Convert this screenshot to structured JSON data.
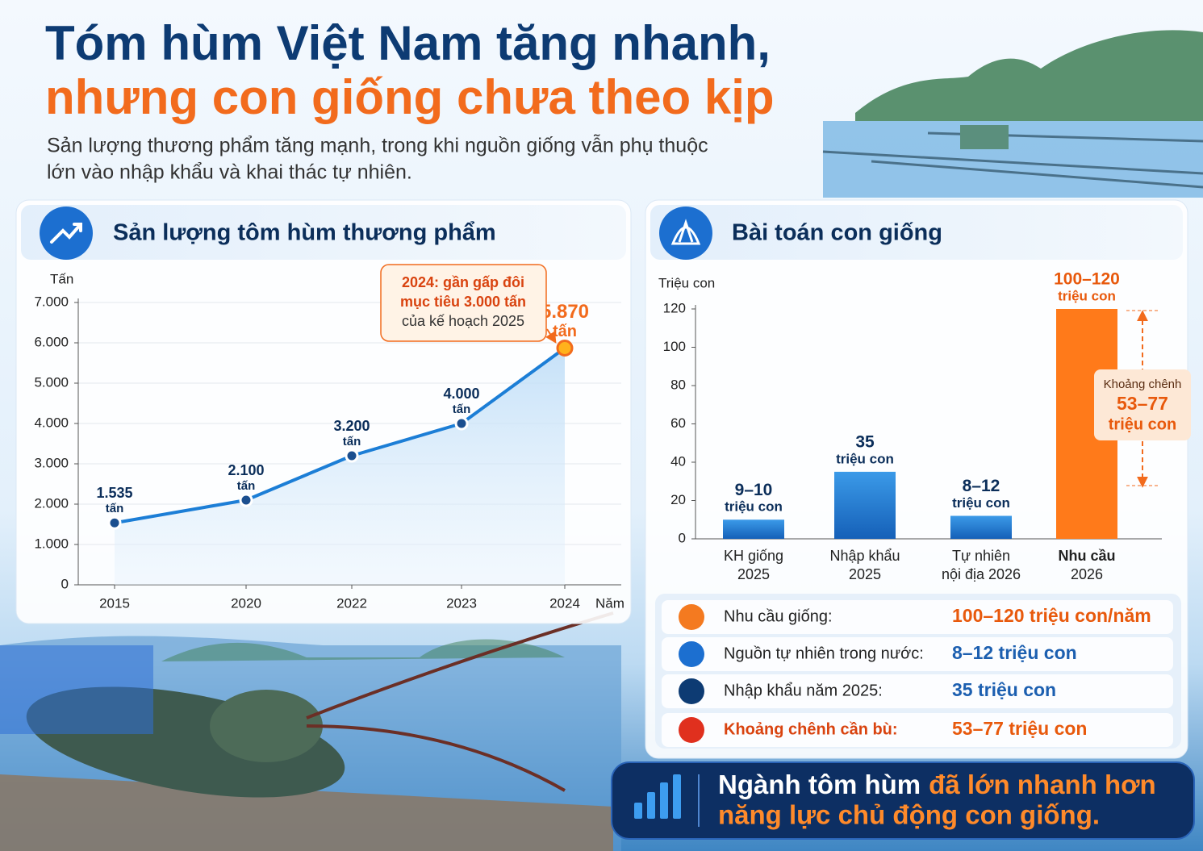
{
  "header": {
    "title_lines": [
      "Tóm hùm Việt Nam tăng nhanh,",
      "nhưng con giống chưa theo kịp"
    ],
    "subtitle_lines": [
      "Sản lượng thương phẩm tăng mạnh, trong khi nguồn giống vẫn phụ thuộc",
      "lớn vào nhập khẩu và khai thác tự nhiên."
    ]
  },
  "chart_data": [
    {
      "type": "line",
      "title": "Sản lượng tôm hùm thương phẩm",
      "y_label": "Tấn",
      "x_label": "Năm",
      "categories": [
        "2015",
        "2020",
        "2022",
        "2023",
        "2024"
      ],
      "values": [
        1535,
        2100,
        3200,
        4000,
        5870
      ],
      "value_labels": [
        "1.535",
        "2.100",
        "3.200",
        "4.000",
        "5.870"
      ],
      "value_unit": "tấn",
      "color": "#1c7ed6",
      "highlight_color": "#f26b1d",
      "ylim": [
        0,
        7000
      ],
      "yticks": [
        0,
        {
          "value": 1000,
          "label": "1.000"
        },
        {
          "value": 2000,
          "label": "2.000"
        },
        {
          "value": 3000,
          "label": "3.000"
        },
        {
          "value": 4000,
          "label": "4.000"
        },
        {
          "value": 5000,
          "label": "5.000"
        },
        {
          "value": 6000,
          "label": "6.000"
        },
        {
          "value": 7000,
          "label": "7.000"
        }
      ],
      "grid": true,
      "annotation": [
        "2024: gần gấp đôi",
        "mục tiêu 3.000 tấn",
        "của kế hoạch 2025"
      ]
    },
    {
      "type": "bar",
      "title": "Bài toán con giống",
      "y_label": "Triệu con",
      "categories": [
        [
          "KH giống",
          "2025"
        ],
        [
          "Nhập khẩu",
          "2025"
        ],
        [
          "Tự nhiên",
          "nội địa 2026"
        ],
        [
          "Nhu cầu",
          "2026"
        ]
      ],
      "values": [
        10,
        35,
        12,
        120
      ],
      "value_labels": [
        "9–10",
        "35",
        "8–12",
        "100–120"
      ],
      "value_unit": "triệu con",
      "colors": [
        "#1f78d1",
        "#1f78d1",
        "#1f78d1",
        "#ff7a1a"
      ],
      "ylim": [
        0,
        120
      ],
      "yticks": [
        0,
        20,
        40,
        60,
        80,
        100,
        120
      ],
      "grid": false,
      "gap_annotation": {
        "label": "Khoảng chênh",
        "value": "53–77",
        "unit": "triệu con"
      }
    }
  ],
  "summary": {
    "rows": [
      {
        "label": "Nhu cầu giống:",
        "value": "100–120 triệu con/năm"
      },
      {
        "label": "Nguồn tự nhiên trong nước:",
        "value": "8–12 triệu con"
      },
      {
        "label": "Nhập khẩu năm 2025:",
        "value": "35 triệu con"
      },
      {
        "label": "Khoảng chênh cần bù:",
        "value": "53–77 triệu con"
      }
    ]
  },
  "footer": {
    "parts": [
      "Ngành tôm hùm",
      "đã lớn nhanh hơn",
      "năng lực chủ động con giống."
    ]
  }
}
